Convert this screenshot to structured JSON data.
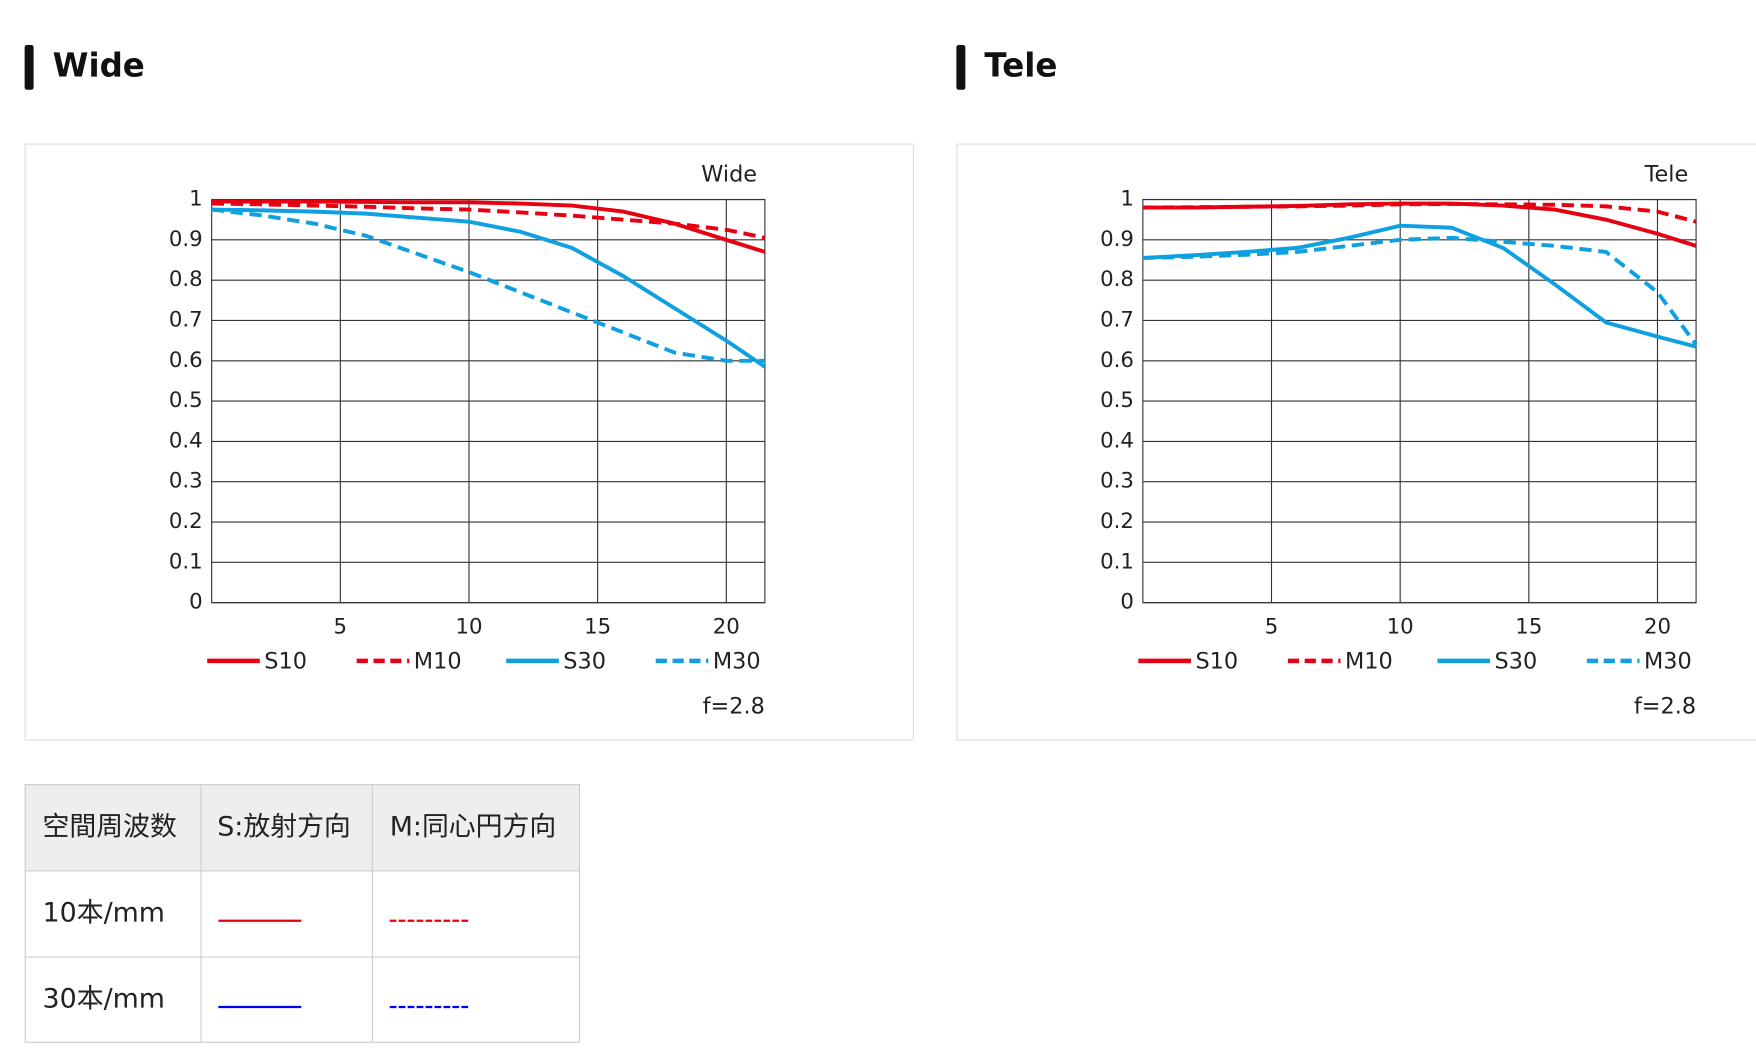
{
  "headings": [
    "Wide",
    "Tele"
  ],
  "chart_data": [
    {
      "type": "line",
      "title": "Wide",
      "note": "f=2.8",
      "x": [
        0,
        2,
        4,
        6,
        8,
        10,
        12,
        14,
        16,
        18,
        20,
        21.5
      ],
      "xlim": [
        0,
        21.5
      ],
      "xticks": [
        5,
        10,
        15,
        20
      ],
      "ylim": [
        0,
        1
      ],
      "yticks": [
        0,
        0.1,
        0.2,
        0.3,
        0.4,
        0.5,
        0.6,
        0.7,
        0.8,
        0.9,
        1
      ],
      "grid": true,
      "series": [
        {
          "name": "S10",
          "color": "#e60012",
          "dash": false,
          "values": [
            0.995,
            0.995,
            0.995,
            0.994,
            0.993,
            0.993,
            0.99,
            0.985,
            0.97,
            0.94,
            0.9,
            0.87
          ]
        },
        {
          "name": "M10",
          "color": "#e60012",
          "dash": true,
          "values": [
            0.99,
            0.988,
            0.985,
            0.982,
            0.978,
            0.975,
            0.968,
            0.96,
            0.95,
            0.94,
            0.925,
            0.905
          ]
        },
        {
          "name": "S30",
          "color": "#0ea0e0",
          "dash": false,
          "values": [
            0.975,
            0.973,
            0.97,
            0.965,
            0.955,
            0.945,
            0.92,
            0.88,
            0.81,
            0.73,
            0.65,
            0.585
          ]
        },
        {
          "name": "M30",
          "color": "#0ea0e0",
          "dash": true,
          "values": [
            0.975,
            0.96,
            0.94,
            0.91,
            0.865,
            0.82,
            0.77,
            0.72,
            0.67,
            0.62,
            0.6,
            0.6
          ]
        }
      ]
    },
    {
      "type": "line",
      "title": "Tele",
      "note": "f=2.8",
      "x": [
        0,
        2,
        4,
        6,
        8,
        10,
        12,
        14,
        16,
        18,
        20,
        21.5
      ],
      "xlim": [
        0,
        21.5
      ],
      "xticks": [
        5,
        10,
        15,
        20
      ],
      "ylim": [
        0,
        1
      ],
      "yticks": [
        0,
        0.1,
        0.2,
        0.3,
        0.4,
        0.5,
        0.6,
        0.7,
        0.8,
        0.9,
        1
      ],
      "grid": true,
      "series": [
        {
          "name": "S10",
          "color": "#e60012",
          "dash": false,
          "values": [
            0.98,
            0.98,
            0.982,
            0.984,
            0.988,
            0.99,
            0.99,
            0.985,
            0.975,
            0.95,
            0.915,
            0.885
          ]
        },
        {
          "name": "M10",
          "color": "#e60012",
          "dash": true,
          "values": [
            0.98,
            0.981,
            0.982,
            0.983,
            0.985,
            0.988,
            0.989,
            0.988,
            0.987,
            0.983,
            0.97,
            0.945
          ]
        },
        {
          "name": "S30",
          "color": "#0ea0e0",
          "dash": false,
          "values": [
            0.855,
            0.862,
            0.87,
            0.88,
            0.905,
            0.935,
            0.93,
            0.88,
            0.79,
            0.695,
            0.66,
            0.635
          ]
        },
        {
          "name": "M30",
          "color": "#0ea0e0",
          "dash": true,
          "values": [
            0.855,
            0.858,
            0.863,
            0.87,
            0.885,
            0.9,
            0.905,
            0.895,
            0.885,
            0.87,
            0.77,
            0.64
          ]
        }
      ]
    }
  ],
  "table": {
    "header": [
      "空間周波数",
      "S:放射方向",
      "M:同心円方向"
    ],
    "rows": [
      [
        "10本/mm"
      ],
      [
        "30本/mm"
      ]
    ]
  }
}
